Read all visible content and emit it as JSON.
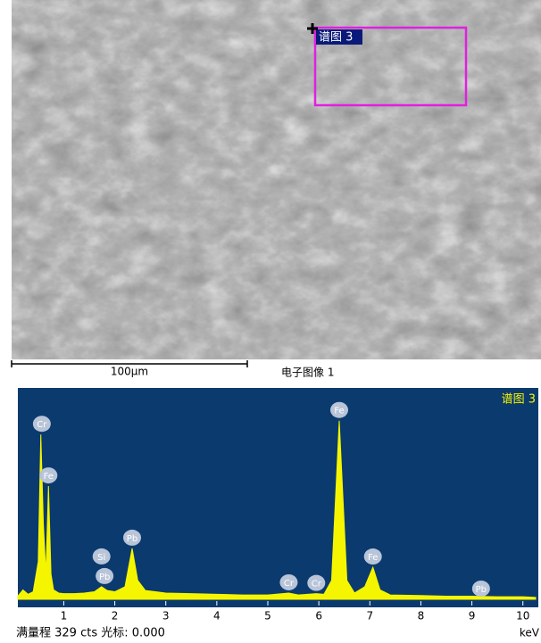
{
  "sem_image": {
    "region_label": "谱图 3",
    "scale_bar": "100μm",
    "caption": "电子图像 1"
  },
  "chart_data": {
    "type": "area",
    "title": "谱图 3",
    "xlabel": "keV",
    "color": "#f5f500",
    "footer": "满量程 329 cts 光标: 0.000",
    "xlim": [
      0.1,
      10.25
    ],
    "ylim": [
      0,
      329
    ],
    "xticks": [
      1,
      2,
      3,
      4,
      5,
      6,
      7,
      8,
      9,
      10
    ],
    "x": [
      0.1,
      0.2,
      0.3,
      0.4,
      0.5,
      0.55,
      0.6,
      0.65,
      0.7,
      0.75,
      0.8,
      0.9,
      1.0,
      1.2,
      1.4,
      1.6,
      1.74,
      1.85,
      2.0,
      2.2,
      2.34,
      2.45,
      2.6,
      2.8,
      3.0,
      3.5,
      4.0,
      4.5,
      5.0,
      5.41,
      5.6,
      5.95,
      6.1,
      6.25,
      6.4,
      6.55,
      6.7,
      6.9,
      7.06,
      7.2,
      7.4,
      8.0,
      8.5,
      9.0,
      9.5,
      10.0,
      10.25
    ],
    "values": [
      5,
      15,
      8,
      12,
      60,
      262,
      120,
      40,
      180,
      40,
      15,
      10,
      9,
      9,
      10,
      12,
      20,
      14,
      12,
      20,
      81,
      30,
      14,
      12,
      10,
      9,
      8,
      7,
      7,
      10,
      7,
      9,
      8,
      30,
      284,
      30,
      10,
      20,
      51,
      15,
      7,
      6,
      5,
      5,
      4,
      4,
      3
    ],
    "annotations": [
      {
        "label": "Cr",
        "x": 0.57
      },
      {
        "label": "Fe",
        "x": 0.7
      },
      {
        "label": "Pb",
        "x": 1.8
      },
      {
        "label": "Si",
        "x": 1.74
      },
      {
        "label": "Pb",
        "x": 2.34
      },
      {
        "label": "Cr",
        "x": 5.41
      },
      {
        "label": "Cr",
        "x": 5.95
      },
      {
        "label": "Fe",
        "x": 6.4
      },
      {
        "label": "Fe",
        "x": 7.06
      },
      {
        "label": "Pb",
        "x": 9.18
      }
    ]
  }
}
